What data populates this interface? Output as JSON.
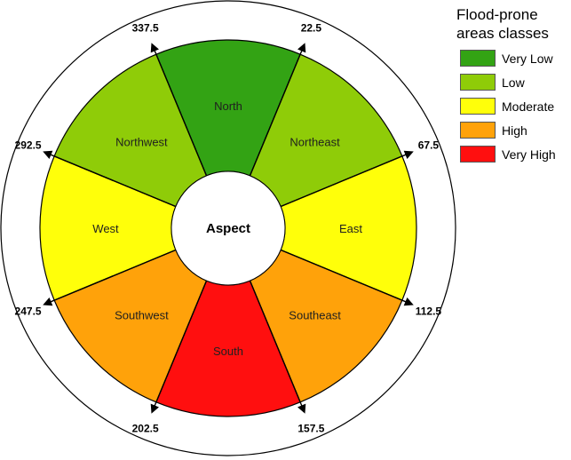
{
  "center_label": "Aspect",
  "sectors": [
    {
      "name": "North",
      "class": "Very Low",
      "color": "#33a314"
    },
    {
      "name": "Northeast",
      "class": "Low",
      "color": "#8fcc08"
    },
    {
      "name": "East",
      "class": "Moderate",
      "color": "#ffff0a"
    },
    {
      "name": "Southeast",
      "class": "High",
      "color": "#ffa20a"
    },
    {
      "name": "South",
      "class": "Very High",
      "color": "#ff0f0f"
    },
    {
      "name": "Southwest",
      "class": "High",
      "color": "#ffa20a"
    },
    {
      "name": "West",
      "class": "Moderate",
      "color": "#ffff0a"
    },
    {
      "name": "Northwest",
      "class": "Low",
      "color": "#8fcc08"
    }
  ],
  "boundaries": [
    "22.5",
    "67.5",
    "112.5",
    "157.5",
    "202.5",
    "247.5",
    "292.5",
    "337.5"
  ],
  "legend": {
    "title_line1": "Flood-prone",
    "title_line2": "areas classes",
    "items": [
      {
        "label": "Very Low",
        "color": "#33a314"
      },
      {
        "label": "Low",
        "color": "#8fcc08"
      },
      {
        "label": "Moderate",
        "color": "#ffff0a"
      },
      {
        "label": "High",
        "color": "#ffa20a"
      },
      {
        "label": "Very High",
        "color": "#ff0f0f"
      }
    ]
  }
}
